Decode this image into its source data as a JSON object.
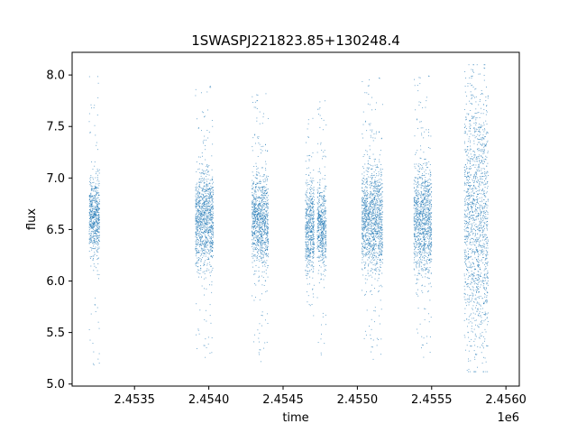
{
  "chart_data": {
    "type": "scatter",
    "title": "1SWASPJ221823.85+130248.4",
    "xlabel": "time",
    "ylabel": "flux",
    "x_offset_label": "1e6",
    "xlim": [
      2453080,
      2456090
    ],
    "ylim": [
      4.98,
      8.22
    ],
    "x_ticks": [
      2453500,
      2454000,
      2454500,
      2455000,
      2455500,
      2456000
    ],
    "x_tick_labels": [
      "2.4535",
      "2.4540",
      "2.4545",
      "2.4550",
      "2.4555",
      "2.4560"
    ],
    "y_ticks": [
      5.0,
      5.5,
      6.0,
      6.5,
      7.0,
      7.5,
      8.0
    ],
    "y_tick_labels": [
      "5.0",
      "5.5",
      "6.0",
      "6.5",
      "7.0",
      "7.5",
      "8.0"
    ],
    "grid": false,
    "point_color": "#1f77b4",
    "clusters": [
      {
        "x_start": 2453195,
        "x_end": 2453265,
        "center": 6.62,
        "core_low": 6.15,
        "core_high": 6.92,
        "min": 5.18,
        "max": 8.0
      },
      {
        "x_start": 2453910,
        "x_end": 2454030,
        "center": 6.6,
        "core_low": 6.1,
        "core_high": 7.05,
        "min": 5.22,
        "max": 7.92
      },
      {
        "x_start": 2454290,
        "x_end": 2454400,
        "center": 6.6,
        "core_low": 6.15,
        "core_high": 7.05,
        "min": 5.18,
        "max": 7.85
      },
      {
        "x_start": 2454650,
        "x_end": 2454710,
        "center": 6.52,
        "core_low": 6.25,
        "core_high": 7.15,
        "min": 5.6,
        "max": 7.6
      },
      {
        "x_start": 2454730,
        "x_end": 2454790,
        "center": 6.55,
        "core_low": 6.25,
        "core_high": 7.05,
        "min": 5.18,
        "max": 7.78
      },
      {
        "x_start": 2455030,
        "x_end": 2455170,
        "center": 6.6,
        "core_low": 6.0,
        "core_high": 7.05,
        "min": 5.2,
        "max": 8.0
      },
      {
        "x_start": 2455380,
        "x_end": 2455500,
        "center": 6.6,
        "core_low": 6.0,
        "core_high": 7.05,
        "min": 5.22,
        "max": 8.02
      },
      {
        "x_start": 2455720,
        "x_end": 2455880,
        "center": 6.62,
        "core_low": 5.4,
        "core_high": 7.9,
        "min": 5.12,
        "max": 8.1
      }
    ]
  }
}
